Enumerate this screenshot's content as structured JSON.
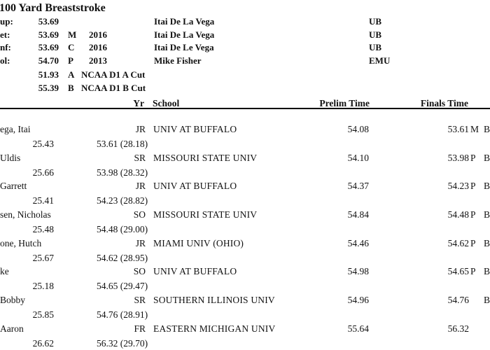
{
  "title": "100 Yard Breaststroke",
  "records": [
    {
      "label": "up:",
      "time": "53.69",
      "flag": "",
      "year": "",
      "holder": "Itai De La Vega",
      "team": "UB"
    },
    {
      "label": "et:",
      "time": "53.69",
      "flag": "M",
      "year": "2016",
      "holder": "Itai De La Vega",
      "team": "UB"
    },
    {
      "label": "nf:",
      "time": "53.69",
      "flag": "C",
      "year": "2016",
      "holder": "Itai De Le Vega",
      "team": "UB"
    },
    {
      "label": "ol:",
      "time": "54.70",
      "flag": "P",
      "year": "2013",
      "holder": "Mike Fisher",
      "team": "EMU"
    }
  ],
  "cuts": [
    {
      "time": "51.93",
      "flag": "A",
      "label": "NCAA D1 A Cut"
    },
    {
      "time": "55.39",
      "flag": "B",
      "label": "NCAA D1 B Cut"
    }
  ],
  "table": {
    "headers": {
      "yr": "Yr",
      "school": "School",
      "prelim": "Prelim Time",
      "finals": "Finals Time"
    },
    "rows": [
      {
        "name": "ega, Itai",
        "yr": "JR",
        "school": "UNIV AT BUFFALO",
        "prelim": "54.08",
        "finals": "53.61",
        "flag": "M",
        "cut": "B",
        "split1": "25.43",
        "split2": "53.61 (28.18)"
      },
      {
        "name": "Uldis",
        "yr": "SR",
        "school": "MISSOURI STATE UNIV",
        "prelim": "54.10",
        "finals": "53.98",
        "flag": "P",
        "cut": "B",
        "split1": "25.66",
        "split2": "53.98 (28.32)"
      },
      {
        "name": "Garrett",
        "yr": "JR",
        "school": "UNIV AT BUFFALO",
        "prelim": "54.37",
        "finals": "54.23",
        "flag": "P",
        "cut": "B",
        "split1": "25.41",
        "split2": "54.23 (28.82)"
      },
      {
        "name": "sen, Nicholas",
        "yr": "SO",
        "school": "MISSOURI STATE UNIV",
        "prelim": "54.84",
        "finals": "54.48",
        "flag": "P",
        "cut": "B",
        "split1": "25.48",
        "split2": "54.48 (29.00)"
      },
      {
        "name": "one, Hutch",
        "yr": "JR",
        "school": "MIAMI UNIV (OHIO)",
        "prelim": "54.46",
        "finals": "54.62",
        "flag": "P",
        "cut": "B",
        "split1": "25.67",
        "split2": "54.62 (28.95)"
      },
      {
        "name": "ke",
        "yr": "SO",
        "school": "UNIV AT BUFFALO",
        "prelim": "54.98",
        "finals": "54.65",
        "flag": "P",
        "cut": "B",
        "split1": "25.18",
        "split2": "54.65 (29.47)"
      },
      {
        "name": "Bobby",
        "yr": "SR",
        "school": "SOUTHERN ILLINOIS UNIV",
        "prelim": "54.96",
        "finals": "54.76",
        "flag": "",
        "cut": "B",
        "split1": "25.85",
        "split2": "54.76 (28.91)"
      },
      {
        "name": "Aaron",
        "yr": "FR",
        "school": "EASTERN MICHIGAN UNIV",
        "prelim": "55.64",
        "finals": "56.32",
        "flag": "",
        "cut": "",
        "split1": "26.62",
        "split2": "56.32 (29.70)"
      }
    ]
  }
}
